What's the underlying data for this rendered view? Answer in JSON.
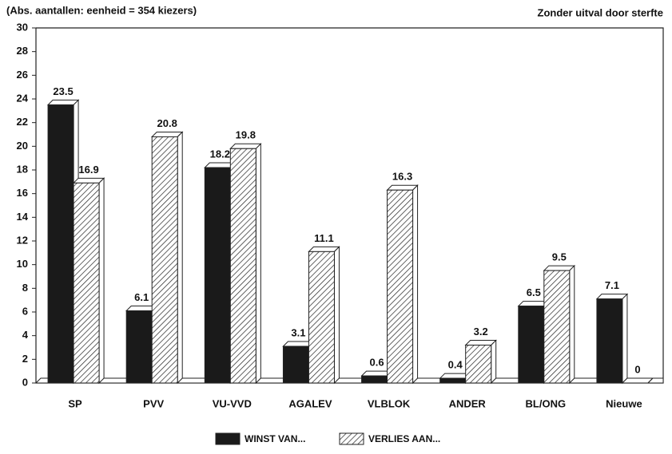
{
  "chart_data": {
    "type": "bar",
    "title": "(Abs. aantallen: eenheid = 354 kiezers)",
    "subtitle": "Zonder uitval door sterfte",
    "categories": [
      "SP",
      "PVV",
      "VU-VVD",
      "AGALEV",
      "VLBLOK",
      "ANDER",
      "BL/ONG",
      "Nieuwe"
    ],
    "series": [
      {
        "name": "WINST VAN...",
        "color": "#1a1a1a",
        "values": [
          23.5,
          6.1,
          18.2,
          3.1,
          0.6,
          0.4,
          6.5,
          7.1
        ]
      },
      {
        "name": "VERLIES AAN...",
        "color": "hatch",
        "values": [
          16.9,
          20.8,
          19.8,
          11.1,
          16.3,
          3.2,
          9.5,
          0
        ]
      }
    ],
    "ylim": [
      0,
      30
    ],
    "yticks": [
      0,
      2,
      4,
      6,
      8,
      10,
      12,
      14,
      16,
      18,
      20,
      22,
      24,
      26,
      28,
      30
    ],
    "legend": "bottom"
  }
}
